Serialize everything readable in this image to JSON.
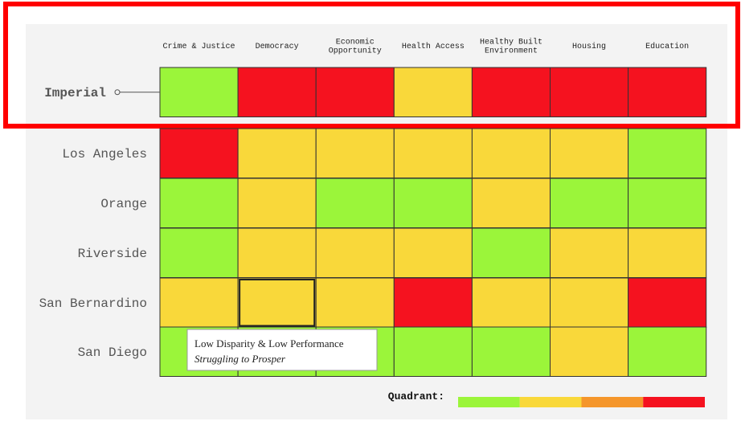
{
  "grid": {
    "columns": [
      [
        "Crime & Justice"
      ],
      [
        "Democracy"
      ],
      [
        "Economic",
        "Opportunity"
      ],
      [
        "Health Access"
      ],
      [
        "Healthy Built",
        "Environment"
      ],
      [
        "Housing"
      ],
      [
        "Education"
      ]
    ],
    "palette": {
      "green": "#9bf53a",
      "yellow": "#f9d83a",
      "orange": "#f5962b",
      "red": "#f5121f"
    },
    "rows": [
      {
        "label": "Imperial",
        "highlighted": true,
        "cells": [
          "green",
          "red",
          "red",
          "yellow",
          "red",
          "red",
          "red"
        ]
      },
      {
        "label": "Los Angeles",
        "cells": [
          "red",
          "yellow",
          "yellow",
          "yellow",
          "yellow",
          "yellow",
          "green"
        ]
      },
      {
        "label": "Orange",
        "cells": [
          "green",
          "yellow",
          "green",
          "green",
          "yellow",
          "green",
          "green"
        ]
      },
      {
        "label": "Riverside",
        "cells": [
          "green",
          "yellow",
          "yellow",
          "yellow",
          "green",
          "yellow",
          "yellow"
        ]
      },
      {
        "label": "San Bernardino",
        "cells": [
          "yellow",
          "yellow",
          "yellow",
          "red",
          "yellow",
          "yellow",
          "red"
        ]
      },
      {
        "label": "San Diego",
        "cells": [
          "green",
          "green",
          "green",
          "green",
          "green",
          "yellow",
          "green"
        ]
      }
    ],
    "selected": {
      "row": 4,
      "col": 1
    },
    "tooltip": {
      "title": "Low Disparity & Low Performance",
      "subtitle": "Struggling to Prosper"
    },
    "legend": {
      "label": "Quadrant:",
      "colors": [
        "green",
        "yellow",
        "orange",
        "red"
      ]
    }
  }
}
